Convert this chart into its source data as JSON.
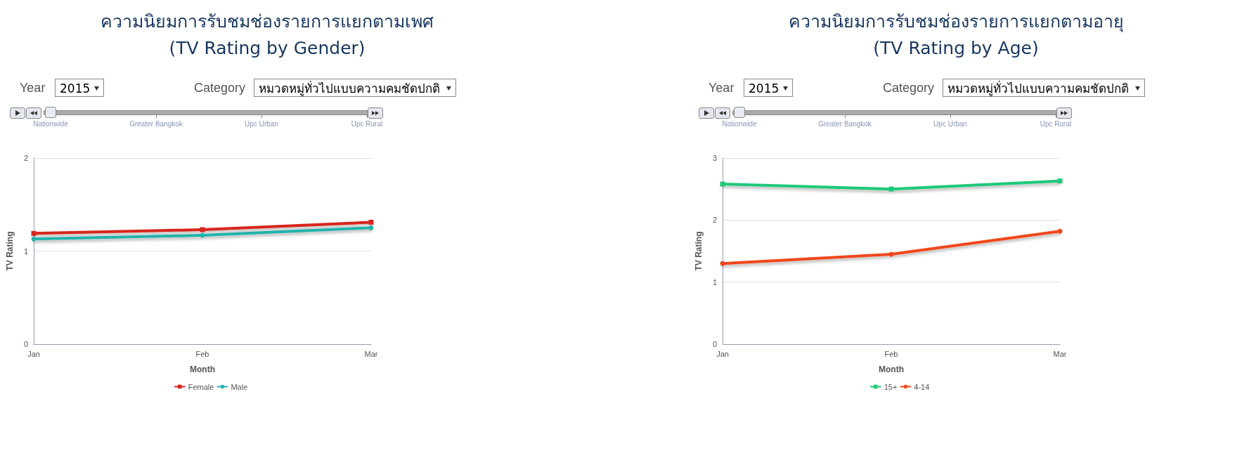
{
  "chart_data": [
    {
      "type": "line",
      "title": "ความนิยมการรับชมช่องรายการแยกตามเพศ\n(TV Rating by Gender)",
      "xlabel": "Month",
      "ylabel": "TV Rating",
      "categories": [
        "Jan",
        "Feb",
        "Mar"
      ],
      "series": [
        {
          "name": "Female",
          "color": "#d7261e",
          "marker": "square",
          "values": [
            1.19,
            1.23,
            1.31
          ]
        },
        {
          "name": "Male",
          "color": "#21b3ab",
          "marker": "circle",
          "values": [
            1.13,
            1.17,
            1.25
          ]
        }
      ],
      "ylim": [
        0,
        2
      ],
      "yticks": [
        0,
        1,
        2
      ],
      "grid": "y",
      "legend": "bottom",
      "annotations": [
        "Year",
        "2015",
        "Category",
        "หมวดหมู่ทั่วไปแบบความคมชัดปกติ",
        "Nationwide",
        "Greater Bangkok",
        "Upc Urban",
        "Upc Rural"
      ]
    },
    {
      "type": "line",
      "title": "ความนิยมการรับชมช่องรายการแยกตามอายุ\n(TV Rating by Age)",
      "xlabel": "Month",
      "ylabel": "TV Rating",
      "categories": [
        "Jan",
        "Feb",
        "Mar"
      ],
      "series": [
        {
          "name": "15+",
          "color": "#1fc97a",
          "marker": "square",
          "values": [
            2.58,
            2.5,
            2.63
          ]
        },
        {
          "name": "4-14",
          "color": "#f0461a",
          "marker": "circle",
          "values": [
            1.3,
            1.45,
            1.82
          ]
        }
      ],
      "ylim": [
        0,
        3
      ],
      "yticks": [
        0,
        1,
        2,
        3
      ],
      "grid": "y",
      "legend": "bottom",
      "annotations": [
        "Year",
        "2015",
        "Category",
        "หมวดหมู่ทั่วไปแบบความคมชัดปกติ",
        "Nationwide",
        "Greater Bangkok",
        "Upc Urban",
        "Upc Rural"
      ]
    }
  ]
}
